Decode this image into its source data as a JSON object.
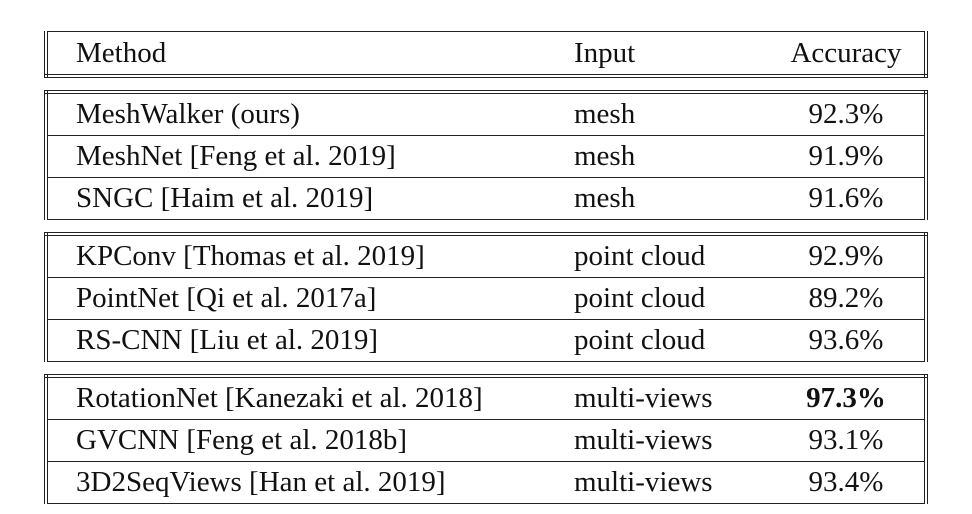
{
  "table": {
    "headers": {
      "method": "Method",
      "input": "Input",
      "accuracy": "Accuracy"
    },
    "groups": [
      {
        "rows": [
          {
            "method": "MeshWalker (ours)",
            "input": "mesh",
            "accuracy": "92.3%"
          },
          {
            "method": "MeshNet [Feng et al. 2019]",
            "input": "mesh",
            "accuracy": "91.9%"
          },
          {
            "method": "SNGC [Haim et al. 2019]",
            "input": "mesh",
            "accuracy": "91.6%"
          }
        ]
      },
      {
        "rows": [
          {
            "method": "KPConv [Thomas et al. 2019]",
            "input": "point cloud",
            "accuracy": "92.9%"
          },
          {
            "method": "PointNet [Qi et al. 2017a]",
            "input": "point cloud",
            "accuracy": "89.2%"
          },
          {
            "method": "RS-CNN [Liu et al. 2019]",
            "input": "point cloud",
            "accuracy": "93.6%"
          }
        ]
      },
      {
        "rows": [
          {
            "method": "RotationNet [Kanezaki et al. 2018]",
            "input": "multi-views",
            "accuracy": "97.3%",
            "bold": true
          },
          {
            "method": "GVCNN [Feng et al. 2018b]",
            "input": "multi-views",
            "accuracy": "93.1%"
          },
          {
            "method": "3D2SeqViews [Han et al. 2019]",
            "input": "multi-views",
            "accuracy": "93.4%"
          }
        ]
      }
    ]
  }
}
